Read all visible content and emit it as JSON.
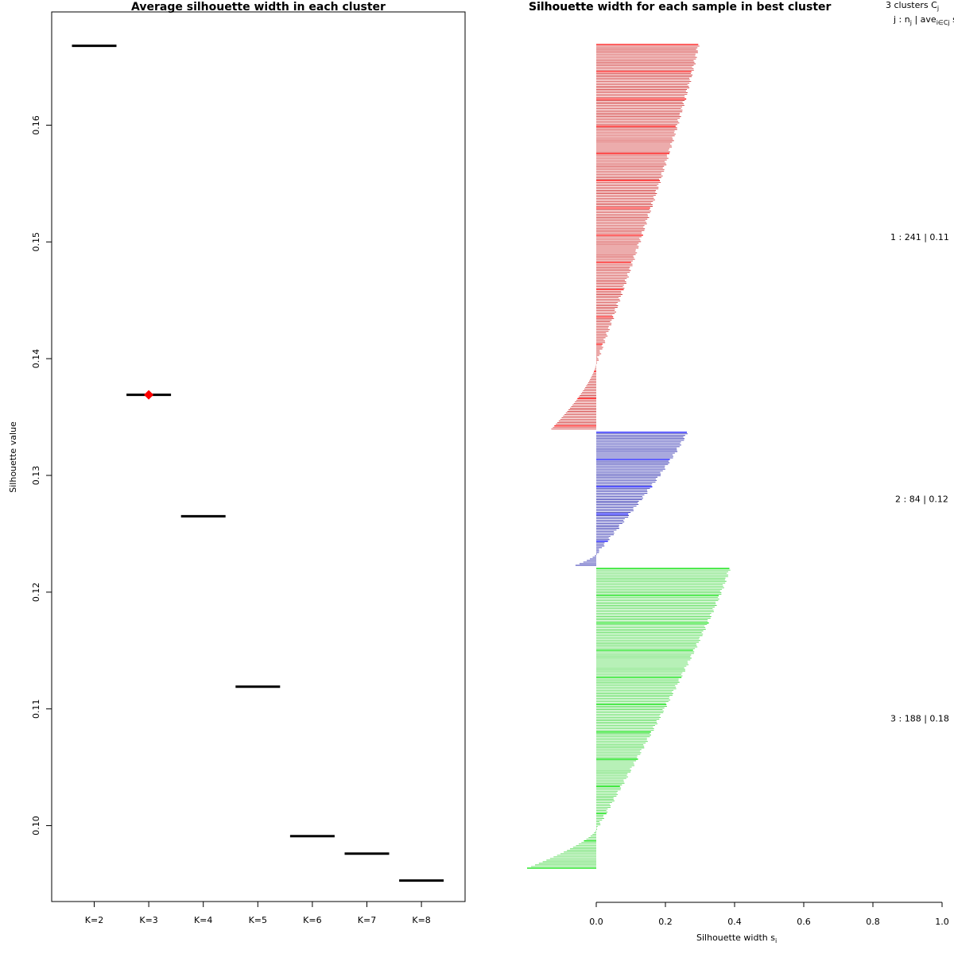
{
  "chart_data": [
    {
      "type": "scatter",
      "title": "Average silhouette width in each cluster",
      "xlabel": "",
      "ylabel": "Silhouette value",
      "categories": [
        "K=2",
        "K=3",
        "K=4",
        "K=5",
        "K=6",
        "K=7",
        "K=8"
      ],
      "values": [
        0.1668,
        0.1369,
        0.1265,
        0.1119,
        0.0991,
        0.0976,
        0.0953
      ],
      "y_ticks": [
        "0.10",
        "0.11",
        "0.12",
        "0.13",
        "0.14",
        "0.15",
        "0.16"
      ],
      "ylim": [
        0.0935,
        0.1697
      ],
      "best_index": 1,
      "mark_color": "#000000",
      "best_color": "#ff0000"
    },
    {
      "type": "bar",
      "orientation": "horizontal",
      "title": "Silhouette width for each sample in best cluster",
      "overlap_title": "Silhouette",
      "xlabel_main": "Silhouette width s",
      "xlabel_sub": "i",
      "xlim": [
        -0.2,
        1.0
      ],
      "x_ticks": [
        "0.0",
        "0.2",
        "0.4",
        "0.6",
        "0.8",
        "1.0"
      ],
      "header_line1": "3  clusters  C",
      "header_line1_sub": "j",
      "header_line2": "j :  n",
      "header_line2_sub": "j",
      "header_line2_rest": " | ave",
      "header_line2_sub2": "i∈Cj",
      "header_line2_tail": "  s",
      "clusters": [
        {
          "id": 1,
          "n": 241,
          "avg": "0.11",
          "label": "1 :  241  |  0.11",
          "color": "#cc2020",
          "accent": "#ff0000",
          "max_width": 0.295,
          "min_width": -0.13,
          "neg_fraction": 0.17
        },
        {
          "id": 2,
          "n": 84,
          "avg": "0.12",
          "label": "2 :  84  |  0.12",
          "color": "#1a1aa8",
          "accent": "#0000ff",
          "max_width": 0.262,
          "min_width": -0.06,
          "neg_fraction": 0.08
        },
        {
          "id": 3,
          "n": 188,
          "avg": "0.18",
          "label": "3 :  188  |  0.18",
          "color": "#3fd63f",
          "accent": "#00e000",
          "max_width": 0.385,
          "min_width": -0.2,
          "neg_fraction": 0.13
        }
      ]
    }
  ]
}
